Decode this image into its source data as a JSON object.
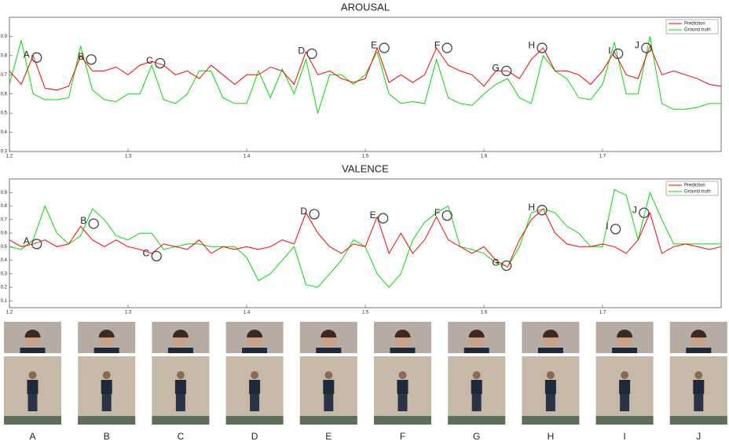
{
  "chart_data": [
    {
      "type": "line",
      "title": "AROUSAL",
      "x": [
        1.2,
        1.21,
        1.22,
        1.23,
        1.24,
        1.25,
        1.26,
        1.27,
        1.28,
        1.29,
        1.3,
        1.31,
        1.32,
        1.33,
        1.34,
        1.35,
        1.36,
        1.37,
        1.38,
        1.39,
        1.4,
        1.41,
        1.42,
        1.43,
        1.44,
        1.45,
        1.46,
        1.47,
        1.48,
        1.49,
        1.5,
        1.51,
        1.52,
        1.53,
        1.54,
        1.55,
        1.56,
        1.57,
        1.58,
        1.59,
        1.6,
        1.61,
        1.62,
        1.63,
        1.64,
        1.65,
        1.66,
        1.67,
        1.68,
        1.69,
        1.7,
        1.71,
        1.72,
        1.73,
        1.74,
        1.75,
        1.76,
        1.77,
        1.78,
        1.79,
        1.8
      ],
      "series": [
        {
          "name": "Prediction",
          "color": "#ff0000",
          "values": [
            0.72,
            0.65,
            0.8,
            0.63,
            0.62,
            0.64,
            0.8,
            0.72,
            0.72,
            0.74,
            0.7,
            0.75,
            0.77,
            0.75,
            0.7,
            0.72,
            0.68,
            0.75,
            0.7,
            0.65,
            0.7,
            0.7,
            0.74,
            0.72,
            0.65,
            0.82,
            0.7,
            0.72,
            0.68,
            0.66,
            0.68,
            0.84,
            0.66,
            0.7,
            0.66,
            0.7,
            0.84,
            0.75,
            0.72,
            0.7,
            0.64,
            0.72,
            0.72,
            0.68,
            0.78,
            0.84,
            0.72,
            0.72,
            0.7,
            0.65,
            0.72,
            0.82,
            0.7,
            0.68,
            0.85,
            0.7,
            0.72,
            0.7,
            0.68,
            0.65,
            0.64
          ]
        },
        {
          "name": "Ground truth",
          "color": "#00dd00",
          "values": [
            0.65,
            0.88,
            0.6,
            0.57,
            0.57,
            0.58,
            0.85,
            0.62,
            0.57,
            0.56,
            0.6,
            0.6,
            0.75,
            0.57,
            0.55,
            0.6,
            0.72,
            0.72,
            0.58,
            0.55,
            0.55,
            0.72,
            0.58,
            0.73,
            0.6,
            0.78,
            0.5,
            0.7,
            0.7,
            0.65,
            0.7,
            0.82,
            0.6,
            0.55,
            0.56,
            0.55,
            0.78,
            0.58,
            0.55,
            0.54,
            0.6,
            0.65,
            0.68,
            0.58,
            0.55,
            0.8,
            0.72,
            0.68,
            0.58,
            0.57,
            0.65,
            0.87,
            0.6,
            0.6,
            0.9,
            0.55,
            0.52,
            0.52,
            0.53,
            0.55,
            0.55
          ]
        }
      ],
      "annotations": [
        {
          "label": "A",
          "x": 1.223,
          "y": 0.79
        },
        {
          "label": "B",
          "x": 1.269,
          "y": 0.78
        },
        {
          "label": "C",
          "x": 1.327,
          "y": 0.76
        },
        {
          "label": "D",
          "x": 1.455,
          "y": 0.81
        },
        {
          "label": "E",
          "x": 1.516,
          "y": 0.84
        },
        {
          "label": "F",
          "x": 1.569,
          "y": 0.84
        },
        {
          "label": "G",
          "x": 1.619,
          "y": 0.72
        },
        {
          "label": "H",
          "x": 1.649,
          "y": 0.84
        },
        {
          "label": "I",
          "x": 1.713,
          "y": 0.81
        },
        {
          "label": "J",
          "x": 1.737,
          "y": 0.84
        }
      ],
      "xlim": [
        1.2,
        1.8
      ],
      "ylim": [
        0.3,
        1.0
      ],
      "xticks": [
        1.2,
        1.3,
        1.4,
        1.5,
        1.6,
        1.7
      ],
      "yticks": [
        0.3,
        0.4,
        0.5,
        0.6,
        0.7,
        0.8,
        0.9
      ],
      "legend": "upper right"
    },
    {
      "type": "line",
      "title": "VALENCE",
      "x": [
        1.2,
        1.21,
        1.22,
        1.23,
        1.24,
        1.25,
        1.26,
        1.27,
        1.28,
        1.29,
        1.3,
        1.31,
        1.32,
        1.33,
        1.34,
        1.35,
        1.36,
        1.37,
        1.38,
        1.39,
        1.4,
        1.41,
        1.42,
        1.43,
        1.44,
        1.45,
        1.46,
        1.47,
        1.48,
        1.49,
        1.5,
        1.51,
        1.52,
        1.53,
        1.54,
        1.55,
        1.56,
        1.57,
        1.58,
        1.59,
        1.6,
        1.61,
        1.62,
        1.63,
        1.64,
        1.65,
        1.66,
        1.67,
        1.68,
        1.69,
        1.7,
        1.71,
        1.72,
        1.73,
        1.74,
        1.75,
        1.76,
        1.77,
        1.78,
        1.79,
        1.8
      ],
      "series": [
        {
          "name": "Prediction",
          "color": "#ff0000",
          "values": [
            0.55,
            0.5,
            0.52,
            0.55,
            0.5,
            0.52,
            0.65,
            0.55,
            0.5,
            0.55,
            0.5,
            0.48,
            0.45,
            0.52,
            0.5,
            0.48,
            0.55,
            0.45,
            0.5,
            0.48,
            0.5,
            0.48,
            0.5,
            0.55,
            0.52,
            0.75,
            0.6,
            0.5,
            0.45,
            0.52,
            0.5,
            0.72,
            0.45,
            0.6,
            0.45,
            0.55,
            0.72,
            0.55,
            0.5,
            0.45,
            0.5,
            0.4,
            0.35,
            0.55,
            0.7,
            0.78,
            0.6,
            0.52,
            0.5,
            0.5,
            0.52,
            0.5,
            0.45,
            0.55,
            0.75,
            0.45,
            0.5,
            0.52,
            0.5,
            0.48,
            0.5
          ]
        },
        {
          "name": "Ground truth",
          "color": "#00dd00",
          "values": [
            0.5,
            0.48,
            0.55,
            0.8,
            0.6,
            0.52,
            0.58,
            0.78,
            0.7,
            0.58,
            0.55,
            0.6,
            0.6,
            0.48,
            0.5,
            0.52,
            0.52,
            0.5,
            0.5,
            0.5,
            0.42,
            0.25,
            0.3,
            0.4,
            0.5,
            0.22,
            0.2,
            0.3,
            0.4,
            0.55,
            0.5,
            0.3,
            0.2,
            0.3,
            0.55,
            0.68,
            0.75,
            0.8,
            0.5,
            0.48,
            0.45,
            0.38,
            0.35,
            0.5,
            0.75,
            0.78,
            0.75,
            0.65,
            0.6,
            0.5,
            0.5,
            0.92,
            0.88,
            0.55,
            0.9,
            0.7,
            0.52,
            0.52,
            0.52,
            0.52,
            0.52
          ]
        }
      ],
      "annotations": [
        {
          "label": "A",
          "x": 1.223,
          "y": 0.52
        },
        {
          "label": "B",
          "x": 1.271,
          "y": 0.67
        },
        {
          "label": "C",
          "x": 1.324,
          "y": 0.43
        },
        {
          "label": "D",
          "x": 1.457,
          "y": 0.74
        },
        {
          "label": "E",
          "x": 1.515,
          "y": 0.71
        },
        {
          "label": "F",
          "x": 1.569,
          "y": 0.73
        },
        {
          "label": "G",
          "x": 1.619,
          "y": 0.36
        },
        {
          "label": "H",
          "x": 1.649,
          "y": 0.77
        },
        {
          "label": "I",
          "x": 1.711,
          "y": 0.63
        },
        {
          "label": "J",
          "x": 1.735,
          "y": 0.75
        }
      ],
      "xlim": [
        1.2,
        1.8
      ],
      "ylim": [
        0.05,
        1.0
      ],
      "xticks": [
        1.2,
        1.3,
        1.4,
        1.5,
        1.6,
        1.7
      ],
      "yticks": [
        0.1,
        0.2,
        0.3,
        0.4,
        0.5,
        0.6,
        0.7,
        0.8,
        0.9
      ],
      "legend": "upper right"
    }
  ],
  "frames": {
    "labels": [
      "A",
      "B",
      "C",
      "D",
      "E",
      "F",
      "G",
      "H",
      "I",
      "J"
    ]
  }
}
